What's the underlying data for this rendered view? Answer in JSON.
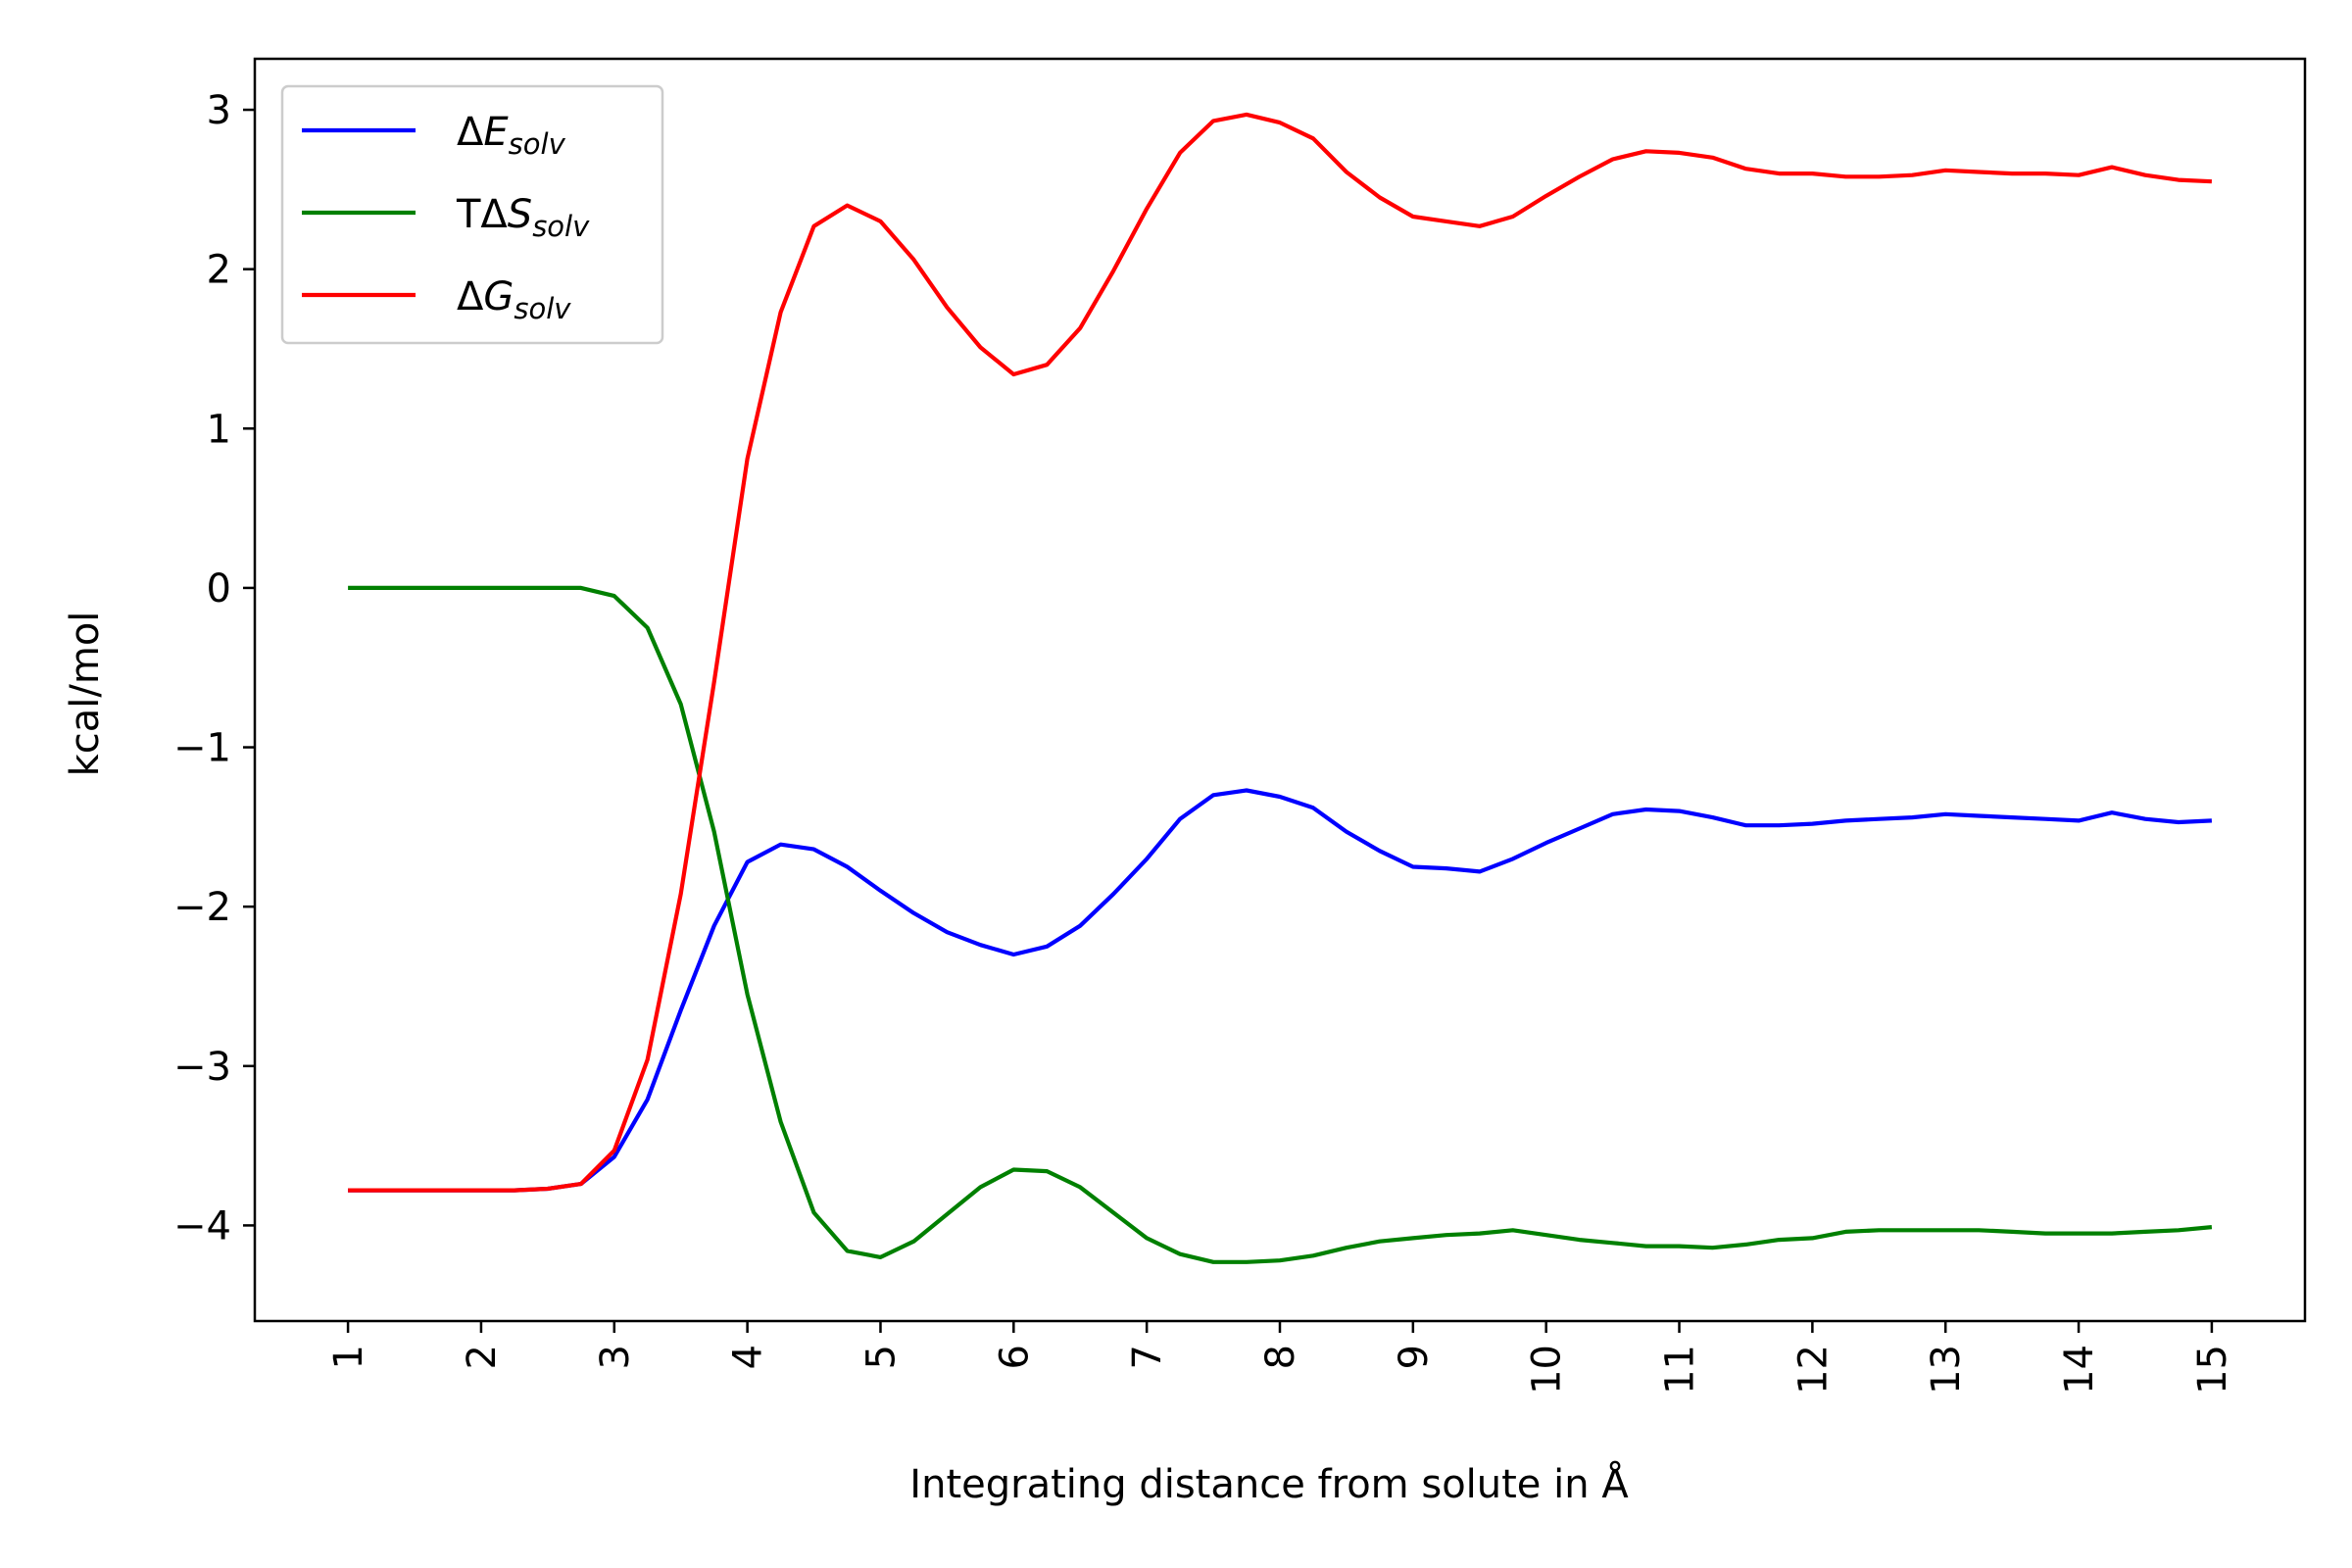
{
  "chart_data": {
    "type": "line",
    "title": "",
    "xlabel": "Integrating distance from solute in Å",
    "ylabel": "kcal/mol",
    "xlim": [
      0.3,
      15.7
    ],
    "ylim": [
      -4.6,
      3.32
    ],
    "x_ticks": [
      1,
      2,
      3,
      4,
      5,
      6,
      7,
      8,
      9,
      10,
      11,
      12,
      13,
      14,
      15
    ],
    "y_ticks": [
      3,
      2,
      1,
      0,
      -1,
      -2,
      -3,
      -4
    ],
    "y_tick_labels": [
      "3",
      "2",
      "1",
      "0",
      "−1",
      "−2",
      "−3",
      "−4"
    ],
    "grid": false,
    "legend_position": "top-left",
    "x": [
      1,
      1.25,
      1.5,
      1.75,
      2,
      2.25,
      2.5,
      2.75,
      3,
      3.25,
      3.5,
      3.75,
      4,
      4.25,
      4.5,
      4.75,
      5,
      5.25,
      5.5,
      5.75,
      6,
      6.25,
      6.5,
      6.75,
      7,
      7.25,
      7.5,
      7.75,
      8,
      8.25,
      8.5,
      8.75,
      9,
      9.25,
      9.5,
      9.75,
      10,
      10.25,
      10.5,
      10.75,
      11,
      11.25,
      11.5,
      11.75,
      12,
      12.25,
      12.5,
      12.75,
      13,
      13.25,
      13.5,
      13.75,
      14,
      14.25,
      14.5,
      14.75,
      15
    ],
    "series": [
      {
        "name": "ΔE",
        "name_sub": "solv",
        "color": "#0000ff",
        "values": [
          -3.78,
          -3.78,
          -3.78,
          -3.78,
          -3.78,
          -3.78,
          -3.77,
          -3.74,
          -3.57,
          -3.21,
          -2.65,
          -2.12,
          -1.72,
          -1.61,
          -1.64,
          -1.75,
          -1.9,
          -2.04,
          -2.16,
          -2.24,
          -2.3,
          -2.25,
          -2.12,
          -1.92,
          -1.7,
          -1.45,
          -1.3,
          -1.27,
          -1.31,
          -1.38,
          -1.53,
          -1.65,
          -1.75,
          -1.76,
          -1.78,
          -1.7,
          -1.6,
          -1.51,
          -1.42,
          -1.39,
          -1.4,
          -1.44,
          -1.49,
          -1.49,
          -1.48,
          -1.46,
          -1.45,
          -1.44,
          -1.42,
          -1.43,
          -1.44,
          -1.45,
          -1.46,
          -1.41,
          -1.45,
          -1.47,
          -1.46
        ]
      },
      {
        "name": "TΔS",
        "name_sub": "solv",
        "color": "#008000",
        "values": [
          0,
          0,
          0,
          0,
          0,
          0,
          0,
          0,
          -0.05,
          -0.25,
          -0.73,
          -1.53,
          -2.55,
          -3.35,
          -3.92,
          -4.16,
          -4.2,
          -4.1,
          -3.93,
          -3.76,
          -3.65,
          -3.66,
          -3.76,
          -3.92,
          -4.08,
          -4.18,
          -4.23,
          -4.23,
          -4.22,
          -4.19,
          -4.14,
          -4.1,
          -4.08,
          -4.06,
          -4.05,
          -4.03,
          -4.06,
          -4.09,
          -4.11,
          -4.13,
          -4.13,
          -4.14,
          -4.12,
          -4.09,
          -4.08,
          -4.04,
          -4.03,
          -4.03,
          -4.03,
          -4.03,
          -4.04,
          -4.05,
          -4.05,
          -4.05,
          -4.04,
          -4.03,
          -4.01
        ]
      },
      {
        "name": "ΔG",
        "name_sub": "solv",
        "color": "#ff0000",
        "values": [
          -3.78,
          -3.78,
          -3.78,
          -3.78,
          -3.78,
          -3.78,
          -3.77,
          -3.74,
          -3.53,
          -2.96,
          -1.92,
          -0.59,
          0.81,
          1.73,
          2.27,
          2.4,
          2.3,
          2.06,
          1.76,
          1.51,
          1.34,
          1.4,
          1.63,
          1.99,
          2.38,
          2.73,
          2.93,
          2.97,
          2.92,
          2.82,
          2.61,
          2.45,
          2.33,
          2.3,
          2.27,
          2.33,
          2.46,
          2.58,
          2.69,
          2.74,
          2.73,
          2.7,
          2.63,
          2.6,
          2.6,
          2.58,
          2.58,
          2.59,
          2.62,
          2.61,
          2.6,
          2.6,
          2.59,
          2.64,
          2.59,
          2.56,
          2.55
        ]
      }
    ]
  }
}
